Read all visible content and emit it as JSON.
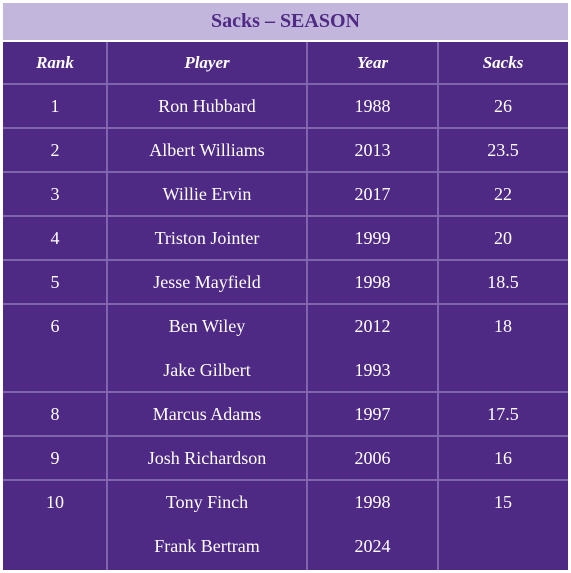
{
  "title": "Sacks – SEASON",
  "columns": [
    "Rank",
    "Player",
    "Year",
    "Sacks"
  ],
  "groups": [
    {
      "rank": 1,
      "sacks": 26,
      "entries": [
        {
          "player": "Ron Hubbard",
          "year": 1988
        }
      ]
    },
    {
      "rank": 2,
      "sacks": 23.5,
      "entries": [
        {
          "player": "Albert Williams",
          "year": 2013
        }
      ]
    },
    {
      "rank": 3,
      "sacks": 22,
      "entries": [
        {
          "player": "Willie Ervin",
          "year": 2017
        }
      ]
    },
    {
      "rank": 4,
      "sacks": 20,
      "entries": [
        {
          "player": "Triston Jointer",
          "year": 1999
        }
      ]
    },
    {
      "rank": 5,
      "sacks": 18.5,
      "entries": [
        {
          "player": "Jesse Mayfield",
          "year": 1998
        }
      ]
    },
    {
      "rank": 6,
      "sacks": 18,
      "entries": [
        {
          "player": "Ben Wiley",
          "year": 2012
        },
        {
          "player": "Jake Gilbert",
          "year": 1993
        }
      ]
    },
    {
      "rank": 8,
      "sacks": 17.5,
      "entries": [
        {
          "player": "Marcus Adams",
          "year": 1997
        }
      ]
    },
    {
      "rank": 9,
      "sacks": 16,
      "entries": [
        {
          "player": "Josh Richardson",
          "year": 2006
        }
      ]
    },
    {
      "rank": 10,
      "sacks": 15,
      "entries": [
        {
          "player": "Tony Finch",
          "year": 1998
        },
        {
          "player": "Frank Bertram",
          "year": 2024
        }
      ]
    }
  ]
}
